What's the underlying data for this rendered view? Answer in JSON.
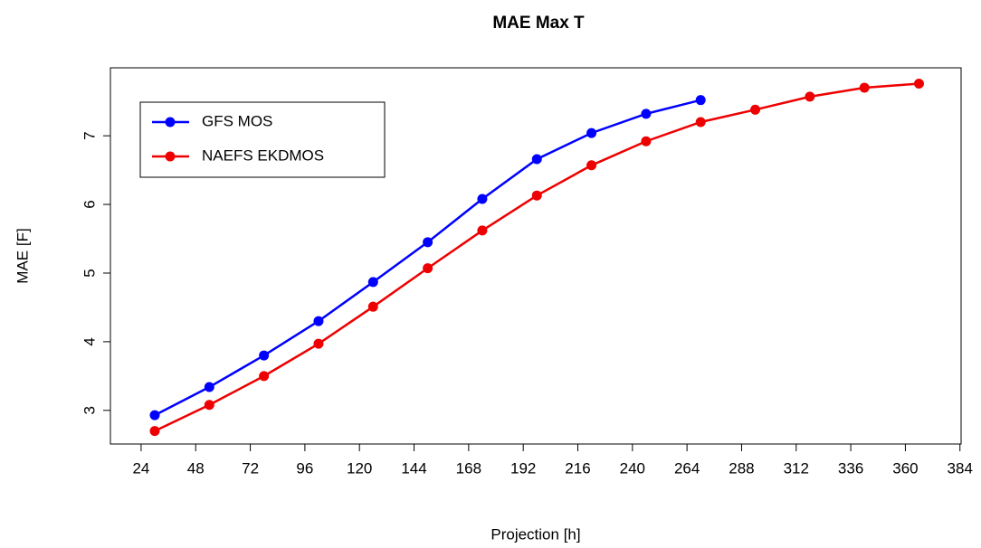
{
  "chart_data": {
    "type": "line",
    "title": "MAE Max T",
    "x_label": "Projection [h]",
    "y_label": "MAE [F]",
    "x": [
      30,
      54,
      78,
      102,
      126,
      150,
      174,
      198,
      222,
      246,
      270,
      294,
      318,
      342,
      366
    ],
    "series": [
      {
        "name": "GFS MOS",
        "color": "#0000ff",
        "values": [
          2.93,
          3.34,
          3.8,
          4.3,
          4.87,
          5.45,
          6.08,
          6.66,
          7.04,
          7.32,
          7.52,
          null,
          null,
          null,
          null
        ]
      },
      {
        "name": "NAEFS EKDMOS",
        "color": "#ee0000",
        "values": [
          2.7,
          3.08,
          3.5,
          3.97,
          4.51,
          5.07,
          5.62,
          6.13,
          6.57,
          6.92,
          7.2,
          7.38,
          7.57,
          7.7,
          7.76
        ]
      }
    ],
    "xlim": [
      10.5,
      384.5
    ],
    "ylim": [
      2.51,
      7.99
    ],
    "xticks": [
      24,
      48,
      72,
      96,
      120,
      144,
      168,
      192,
      216,
      240,
      264,
      288,
      312,
      336,
      360,
      384
    ],
    "yticks": [
      3,
      4,
      5,
      6,
      7
    ],
    "legend": "top-left"
  }
}
